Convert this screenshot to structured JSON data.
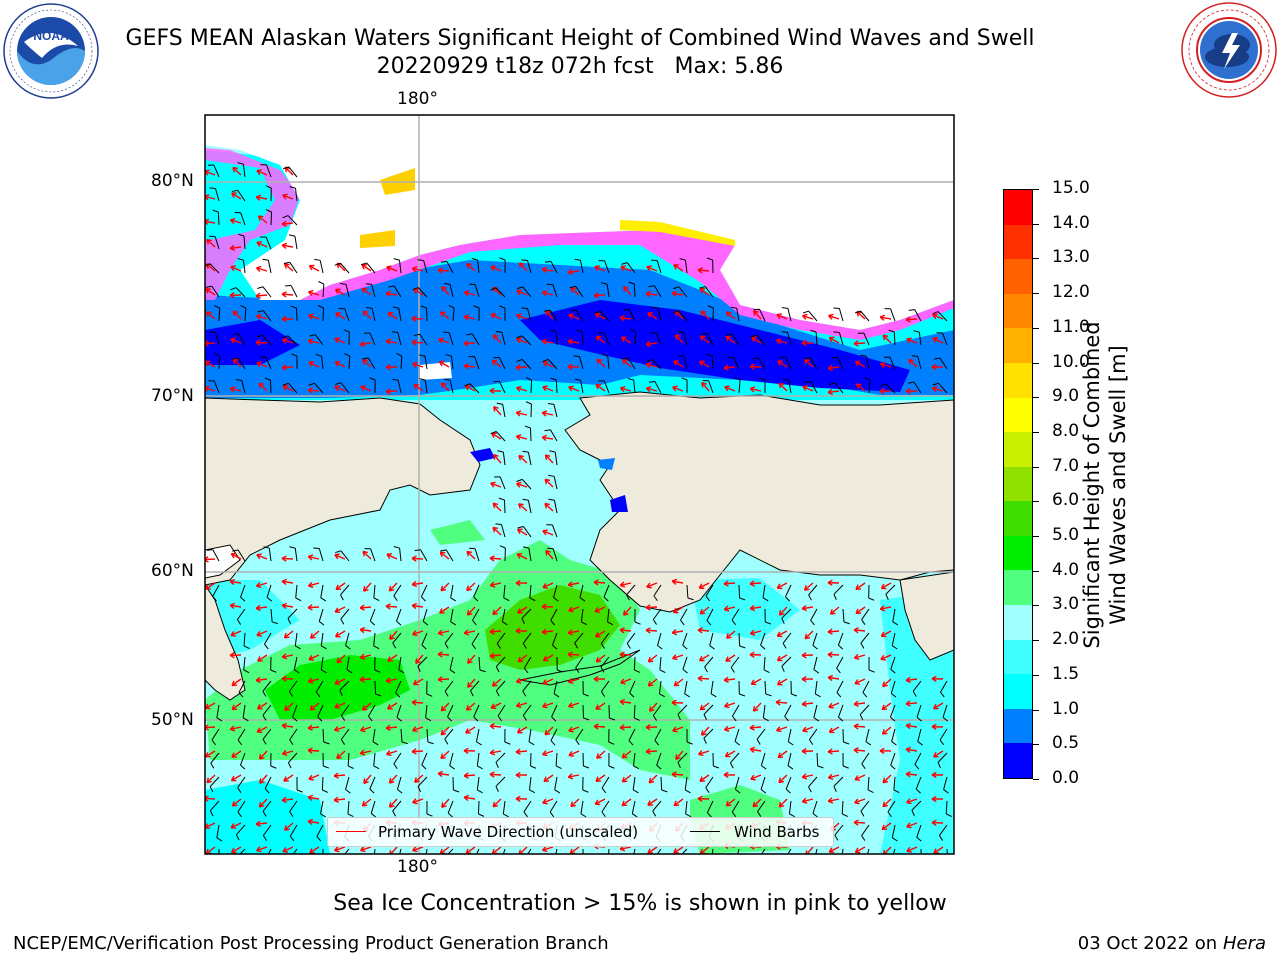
{
  "title": {
    "line1": "GEFS MEAN Alaskan Waters Significant Height of Combined Wind Waves and Swell",
    "line2": "20220929 t18z 072h fcst   Max: 5.86"
  },
  "logos": {
    "left": {
      "name": "noaa-logo",
      "text": "NOAA",
      "ring_text": "NATIONAL OCEANIC AND ATMOSPHERIC ADMINISTRATION • U.S. DEPARTMENT OF COMMERCE"
    },
    "right": {
      "name": "nws-logo",
      "ring_text": "NATIONAL WEATHER SERVICE"
    }
  },
  "map": {
    "lon_labels": [
      "180°",
      "180°"
    ],
    "lat_labels": [
      "80°N",
      "70°N",
      "60°N",
      "50°N"
    ],
    "land_color": "#efebdc",
    "grid_color": "#b0b0b0"
  },
  "legend": {
    "wave_label": "Primary Wave Direction (unscaled)",
    "wave_color": "#ff0000",
    "wind_label": "Wind Barbs",
    "wind_color": "#000000"
  },
  "colorbar": {
    "title_line1": "Significant Height of Combined",
    "title_line2": "Wind Waves and Swell [m]",
    "ticks": [
      "0.0",
      "0.5",
      "1.0",
      "1.5",
      "2.0",
      "3.0",
      "4.0",
      "5.0",
      "6.0",
      "7.0",
      "8.0",
      "9.0",
      "10.0",
      "11.0",
      "12.0",
      "13.0",
      "14.0",
      "15.0"
    ],
    "colors": [
      "#0000ff",
      "#0080ff",
      "#00ffff",
      "#40ffff",
      "#a0ffff",
      "#50ff80",
      "#00ee00",
      "#40dd00",
      "#90e000",
      "#c8f000",
      "#ffff00",
      "#ffe000",
      "#ffb000",
      "#ff8800",
      "#ff6000",
      "#ff3000",
      "#ff0000"
    ]
  },
  "footnote": "Sea Ice Concentration > 15% is shown in pink to yellow",
  "credits": {
    "left": "NCEP/EMC/Verification Post Processing Product Generation Branch",
    "right_prefix": "03 Oct 2022 on ",
    "right_host": "Hera"
  }
}
